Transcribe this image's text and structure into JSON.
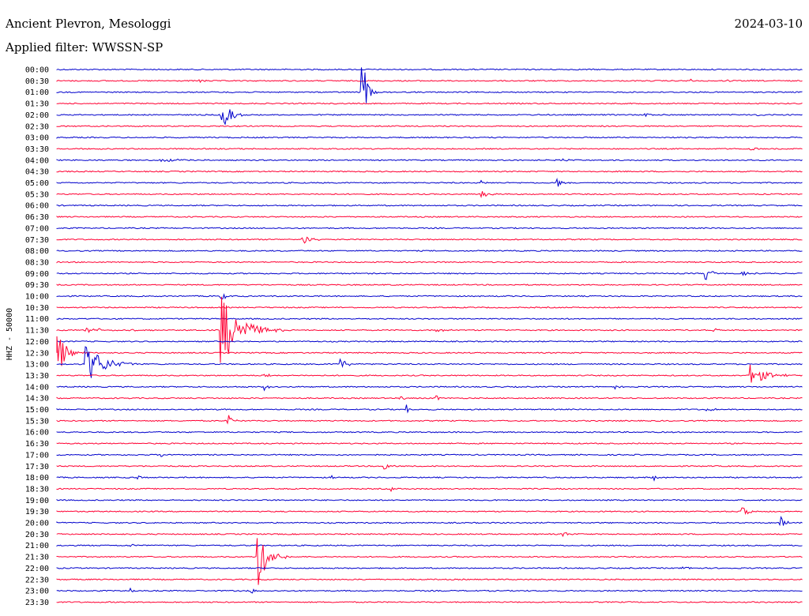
{
  "header": {
    "station": "Ancient Plevron, Mesologgi",
    "date": "2024-03-10",
    "filter": "Applied filter: WWSSN-SP"
  },
  "chart_data": {
    "type": "line",
    "title": "Ancient Plevron, Mesologgi",
    "subtitle": "Applied filter: WWSSN-SP",
    "date": "2024-03-10",
    "ylabel": "HHZ - 50000",
    "xlabel": "",
    "grid": false,
    "legend": "none",
    "colors": [
      "#0000cc",
      "#ff0033"
    ],
    "rows": [
      {
        "time": "00:00",
        "events": []
      },
      {
        "time": "00:30",
        "events": [
          {
            "t": 0.19,
            "amp": 3,
            "len": 0.02
          },
          {
            "t": 0.85,
            "amp": 3,
            "len": 0.02
          },
          {
            "t": 0.9,
            "amp": 2,
            "len": 0.01
          }
        ]
      },
      {
        "time": "01:00",
        "events": [
          {
            "t": 0.41,
            "amp": 48,
            "len": 0.02
          },
          {
            "t": 0.23,
            "amp": 3,
            "len": 0.01
          }
        ]
      },
      {
        "time": "01:30",
        "events": []
      },
      {
        "time": "02:00",
        "events": [
          {
            "t": 0.22,
            "amp": 22,
            "len": 0.04
          },
          {
            "t": 0.79,
            "amp": 2,
            "len": 0.02
          },
          {
            "t": 0.94,
            "amp": 2,
            "len": 0.02
          }
        ]
      },
      {
        "time": "02:30",
        "events": [
          {
            "t": 0.73,
            "amp": 2,
            "len": 0.01
          }
        ]
      },
      {
        "time": "03:00",
        "events": []
      },
      {
        "time": "03:30",
        "events": [
          {
            "t": 0.93,
            "amp": 3,
            "len": 0.02
          }
        ]
      },
      {
        "time": "04:00",
        "events": [
          {
            "t": 0.14,
            "amp": 2,
            "len": 0.08
          },
          {
            "t": 0.68,
            "amp": 2,
            "len": 0.03
          }
        ]
      },
      {
        "time": "04:30",
        "events": []
      },
      {
        "time": "05:00",
        "events": [
          {
            "t": 0.57,
            "amp": 2,
            "len": 0.02
          },
          {
            "t": 0.67,
            "amp": 6,
            "len": 0.03
          },
          {
            "t": 0.87,
            "amp": 2,
            "len": 0.01
          }
        ]
      },
      {
        "time": "05:30",
        "events": [
          {
            "t": 0.57,
            "amp": 7,
            "len": 0.03
          }
        ]
      },
      {
        "time": "06:00",
        "events": []
      },
      {
        "time": "06:30",
        "events": []
      },
      {
        "time": "07:00",
        "events": []
      },
      {
        "time": "07:30",
        "events": [
          {
            "t": 0.33,
            "amp": 6,
            "len": 0.04
          }
        ]
      },
      {
        "time": "08:00",
        "events": []
      },
      {
        "time": "08:30",
        "events": []
      },
      {
        "time": "09:00",
        "events": [
          {
            "t": 0.87,
            "amp": 9,
            "len": 0.03
          },
          {
            "t": 0.92,
            "amp": 3,
            "len": 0.02
          }
        ]
      },
      {
        "time": "09:30",
        "events": []
      },
      {
        "time": "10:00",
        "events": [
          {
            "t": 0.22,
            "amp": 8,
            "len": 0.02
          }
        ]
      },
      {
        "time": "10:30",
        "events": []
      },
      {
        "time": "11:00",
        "events": []
      },
      {
        "time": "11:30",
        "events": [
          {
            "t": 0.22,
            "amp": 48,
            "len": 0.09
          },
          {
            "t": 0.51,
            "amp": 3,
            "len": 0.03
          },
          {
            "t": 0.88,
            "amp": 3,
            "len": 0.02
          },
          {
            "t": 0.04,
            "amp": 3,
            "len": 0.15
          }
        ]
      },
      {
        "time": "12:00",
        "events": []
      },
      {
        "time": "12:30",
        "events": [
          {
            "t": 0.0,
            "amp": 35,
            "len": 0.04
          }
        ]
      },
      {
        "time": "13:00",
        "events": [
          {
            "t": 0.04,
            "amp": 26,
            "len": 0.08
          },
          {
            "t": 0.38,
            "amp": 9,
            "len": 0.03
          }
        ]
      },
      {
        "time": "13:30",
        "events": [
          {
            "t": 0.93,
            "amp": 14,
            "len": 0.07
          },
          {
            "t": 0.28,
            "amp": 3,
            "len": 0.02
          }
        ]
      },
      {
        "time": "14:00",
        "events": [
          {
            "t": 0.28,
            "amp": 3,
            "len": 0.02
          },
          {
            "t": 0.75,
            "amp": 2,
            "len": 0.02
          }
        ]
      },
      {
        "time": "14:30",
        "events": [
          {
            "t": 0.46,
            "amp": 3,
            "len": 0.03
          },
          {
            "t": 0.51,
            "amp": 3,
            "len": 0.01
          }
        ]
      },
      {
        "time": "15:00",
        "events": [
          {
            "t": 0.2,
            "amp": 2,
            "len": 0.02
          },
          {
            "t": 0.47,
            "amp": 4,
            "len": 0.01
          },
          {
            "t": 0.87,
            "amp": 3,
            "len": 0.03
          }
        ]
      },
      {
        "time": "15:30",
        "events": [
          {
            "t": 0.23,
            "amp": 8,
            "len": 0.02
          }
        ]
      },
      {
        "time": "16:00",
        "events": []
      },
      {
        "time": "16:30",
        "events": []
      },
      {
        "time": "17:00",
        "events": [
          {
            "t": 0.14,
            "amp": 3,
            "len": 0.02
          }
        ]
      },
      {
        "time": "17:30",
        "events": [
          {
            "t": 0.44,
            "amp": 7,
            "len": 0.02
          }
        ]
      },
      {
        "time": "18:00",
        "events": [
          {
            "t": 0.11,
            "amp": 2,
            "len": 0.02
          },
          {
            "t": 0.37,
            "amp": 2,
            "len": 0.01
          },
          {
            "t": 0.8,
            "amp": 5,
            "len": 0.03
          }
        ]
      },
      {
        "time": "18:30",
        "events": [
          {
            "t": 0.45,
            "amp": 2,
            "len": 0.01
          },
          {
            "t": 0.56,
            "amp": 2,
            "len": 0.01
          }
        ]
      },
      {
        "time": "19:00",
        "events": []
      },
      {
        "time": "19:30",
        "events": [
          {
            "t": 0.92,
            "amp": 6,
            "len": 0.03
          }
        ]
      },
      {
        "time": "20:00",
        "events": [
          {
            "t": 0.97,
            "amp": 10,
            "len": 0.02
          },
          {
            "t": 0.0,
            "amp": 2,
            "len": 0.02
          }
        ]
      },
      {
        "time": "20:30",
        "events": [
          {
            "t": 0.68,
            "amp": 4,
            "len": 0.02
          }
        ]
      },
      {
        "time": "21:00",
        "events": [
          {
            "t": 0.1,
            "amp": 2,
            "len": 0.02
          },
          {
            "t": 0.14,
            "amp": 2,
            "len": 0.01
          }
        ]
      },
      {
        "time": "21:30",
        "events": [
          {
            "t": 0.27,
            "amp": 38,
            "len": 0.05
          }
        ]
      },
      {
        "time": "22:00",
        "events": [
          {
            "t": 0.84,
            "amp": 3,
            "len": 0.02
          }
        ]
      },
      {
        "time": "22:30",
        "events": []
      },
      {
        "time": "23:00",
        "events": [
          {
            "t": 0.1,
            "amp": 2,
            "len": 0.02
          },
          {
            "t": 0.26,
            "amp": 4,
            "len": 0.02
          }
        ]
      },
      {
        "time": "23:30",
        "events": []
      }
    ]
  }
}
